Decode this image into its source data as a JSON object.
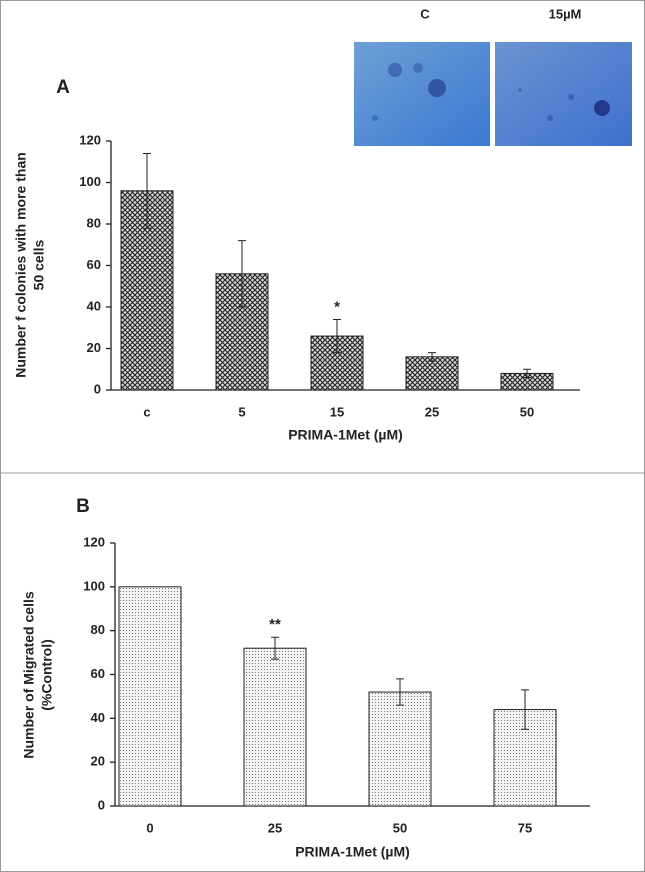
{
  "chart_data": [
    {
      "type": "bar",
      "panel": "A",
      "insets": [
        "C",
        "15µM"
      ],
      "pattern": "crosshatch",
      "ylabel": [
        "Number f colonies with more than",
        "50 cells"
      ],
      "xlabel": "PRIMA-1Met (µM)",
      "categories": [
        "c",
        "5",
        "15",
        "25",
        "50"
      ],
      "values": [
        96,
        56,
        26,
        16,
        8
      ],
      "errors": [
        18,
        16,
        8,
        2,
        2
      ],
      "annotations": [
        null,
        null,
        "*",
        null,
        null
      ],
      "ylim": [
        0,
        120
      ],
      "yticks": [
        0,
        20,
        40,
        60,
        80,
        100,
        120
      ]
    },
    {
      "type": "bar",
      "panel": "B",
      "pattern": "dots",
      "ylabel": [
        "Number of Migrated  cells",
        "(%Control)"
      ],
      "xlabel": "PRIMA-1Met (µM)",
      "categories": [
        "0",
        "25",
        "50",
        "75"
      ],
      "values": [
        100,
        72,
        52,
        44
      ],
      "errors": [
        null,
        5,
        6,
        9
      ],
      "annotations": [
        null,
        "**",
        null,
        null
      ],
      "ylim": [
        0,
        120
      ],
      "yticks": [
        0,
        20,
        40,
        60,
        80,
        100,
        120
      ]
    }
  ]
}
